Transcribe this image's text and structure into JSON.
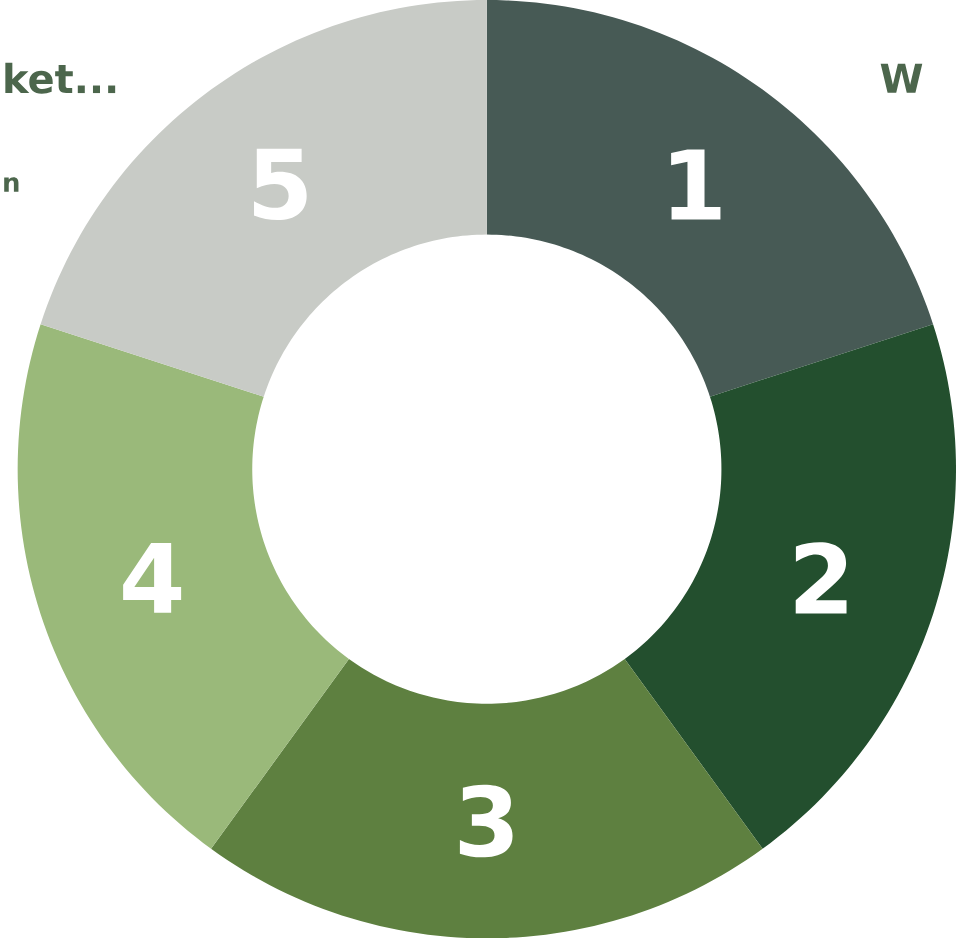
{
  "chart_data": {
    "type": "donut",
    "categories": [
      "1",
      "2",
      "3",
      "4",
      "5"
    ],
    "values": [
      20,
      20,
      20,
      20,
      20
    ],
    "colors": [
      "#475a55",
      "#234f2e",
      "#5e8040",
      "#9ab97a",
      "#c8cbc6"
    ],
    "annotations": [
      "ket...",
      "n",
      "W"
    ]
  }
}
